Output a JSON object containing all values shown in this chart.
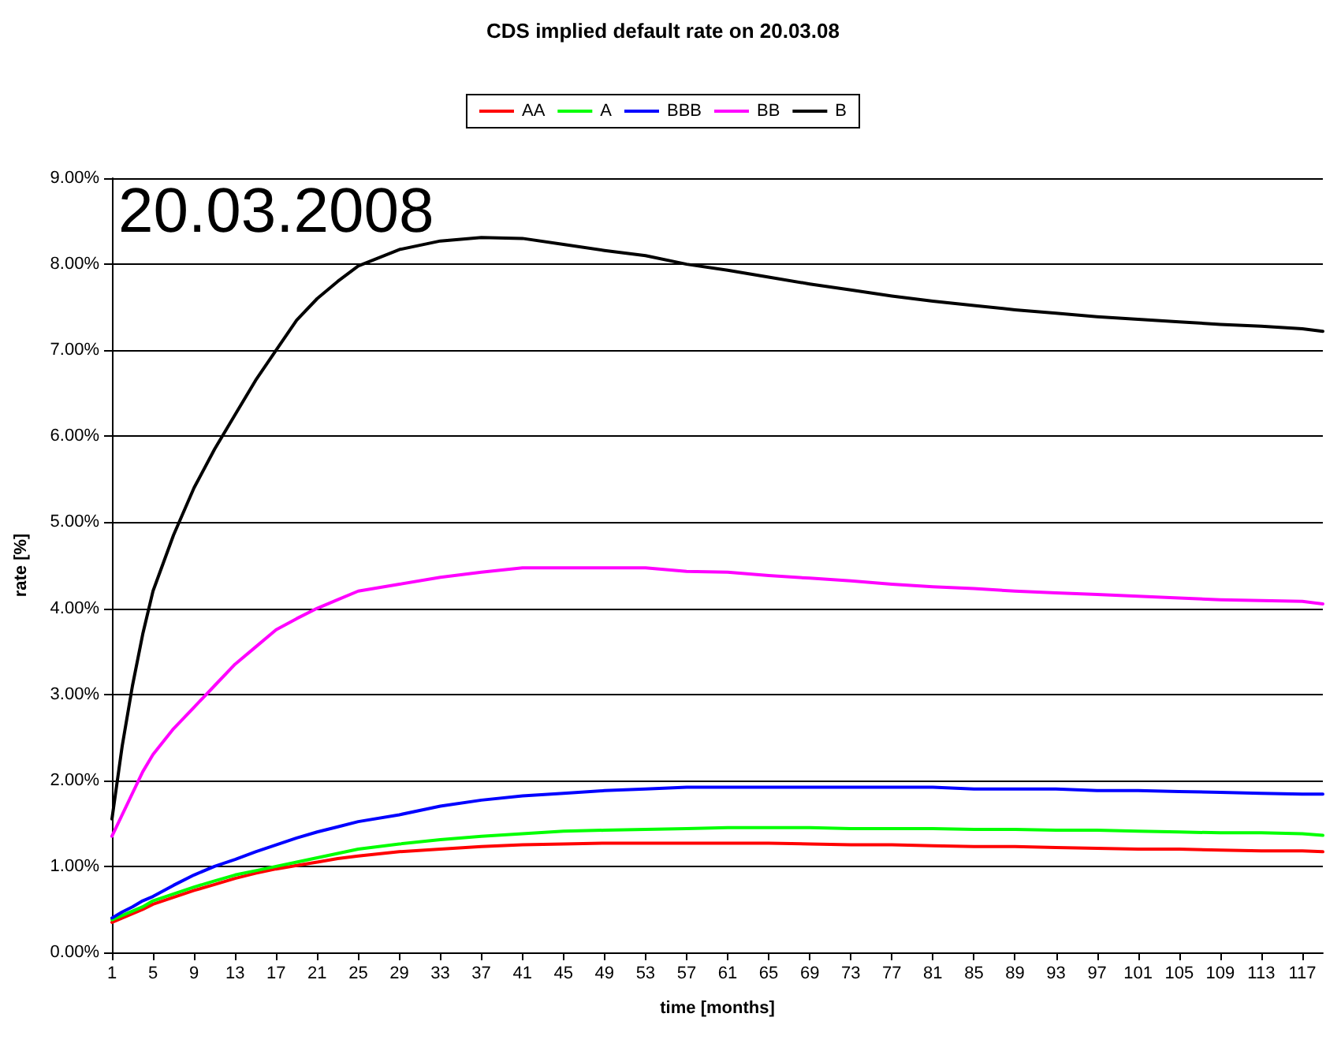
{
  "chart_data": {
    "type": "line",
    "title": "CDS implied default rate on 20.03.08",
    "xlabel": "time [months]",
    "ylabel": "rate [%]",
    "annotations": [
      "20.03.2008"
    ],
    "x": [
      1,
      2,
      3,
      4,
      5,
      7,
      9,
      11,
      13,
      15,
      17,
      19,
      21,
      23,
      25,
      29,
      33,
      37,
      41,
      45,
      49,
      53,
      57,
      61,
      65,
      69,
      73,
      77,
      81,
      85,
      89,
      93,
      97,
      101,
      105,
      109,
      113,
      117,
      119
    ],
    "series": [
      {
        "name": "AA",
        "color": "#ff0000",
        "values": [
          0.35,
          0.4,
          0.45,
          0.5,
          0.56,
          0.64,
          0.72,
          0.79,
          0.86,
          0.92,
          0.97,
          1.01,
          1.05,
          1.09,
          1.12,
          1.17,
          1.2,
          1.23,
          1.25,
          1.26,
          1.27,
          1.27,
          1.27,
          1.27,
          1.27,
          1.26,
          1.25,
          1.25,
          1.24,
          1.23,
          1.23,
          1.22,
          1.21,
          1.2,
          1.2,
          1.19,
          1.18,
          1.18,
          1.17
        ]
      },
      {
        "name": "A",
        "color": "#00ff00",
        "values": [
          0.38,
          0.43,
          0.48,
          0.53,
          0.6,
          0.68,
          0.76,
          0.83,
          0.9,
          0.95,
          1.0,
          1.05,
          1.1,
          1.15,
          1.2,
          1.26,
          1.31,
          1.35,
          1.38,
          1.41,
          1.42,
          1.43,
          1.44,
          1.45,
          1.45,
          1.45,
          1.44,
          1.44,
          1.44,
          1.43,
          1.43,
          1.42,
          1.42,
          1.41,
          1.4,
          1.39,
          1.39,
          1.38,
          1.36
        ]
      },
      {
        "name": "BBB",
        "color": "#0000ff",
        "values": [
          0.4,
          0.47,
          0.53,
          0.6,
          0.65,
          0.78,
          0.9,
          1.0,
          1.08,
          1.17,
          1.25,
          1.33,
          1.4,
          1.46,
          1.52,
          1.6,
          1.7,
          1.77,
          1.82,
          1.85,
          1.88,
          1.9,
          1.92,
          1.92,
          1.92,
          1.92,
          1.92,
          1.92,
          1.92,
          1.9,
          1.9,
          1.9,
          1.88,
          1.88,
          1.87,
          1.86,
          1.85,
          1.84,
          1.84
        ]
      },
      {
        "name": "BB",
        "color": "#ff00ff",
        "values": [
          1.35,
          1.6,
          1.85,
          2.1,
          2.3,
          2.6,
          2.85,
          3.1,
          3.35,
          3.55,
          3.75,
          3.88,
          4.0,
          4.1,
          4.2,
          4.28,
          4.36,
          4.42,
          4.47,
          4.47,
          4.47,
          4.47,
          4.43,
          4.42,
          4.38,
          4.35,
          4.32,
          4.28,
          4.25,
          4.23,
          4.2,
          4.18,
          4.16,
          4.14,
          4.12,
          4.1,
          4.09,
          4.08,
          4.05
        ]
      },
      {
        "name": "B",
        "color": "#000000",
        "values": [
          1.55,
          2.4,
          3.1,
          3.7,
          4.2,
          4.85,
          5.4,
          5.85,
          6.25,
          6.65,
          7.0,
          7.35,
          7.6,
          7.8,
          7.98,
          8.17,
          8.27,
          8.31,
          8.3,
          8.23,
          8.16,
          8.1,
          8.0,
          7.93,
          7.85,
          7.77,
          7.7,
          7.63,
          7.57,
          7.52,
          7.47,
          7.43,
          7.39,
          7.36,
          7.33,
          7.3,
          7.28,
          7.25,
          7.22
        ]
      }
    ],
    "xlim": [
      1,
      119
    ],
    "xticks": [
      1,
      5,
      9,
      13,
      17,
      21,
      25,
      29,
      33,
      37,
      41,
      45,
      49,
      53,
      57,
      61,
      65,
      69,
      73,
      77,
      81,
      85,
      89,
      93,
      97,
      101,
      105,
      109,
      113,
      117
    ],
    "ylim": [
      0,
      9
    ],
    "yticks": [
      {
        "value": 0,
        "label": "0.00%"
      },
      {
        "value": 1,
        "label": "1.00%"
      },
      {
        "value": 2,
        "label": "2.00%"
      },
      {
        "value": 3,
        "label": "3.00%"
      },
      {
        "value": 4,
        "label": "4.00%"
      },
      {
        "value": 5,
        "label": "5.00%"
      },
      {
        "value": 6,
        "label": "6.00%"
      },
      {
        "value": 7,
        "label": "7.00%"
      },
      {
        "value": 8,
        "label": "8.00%"
      },
      {
        "value": 9,
        "label": "9.00%"
      }
    ],
    "grid": "y",
    "legend": "top",
    "marker": "none",
    "line_style": "solid"
  }
}
